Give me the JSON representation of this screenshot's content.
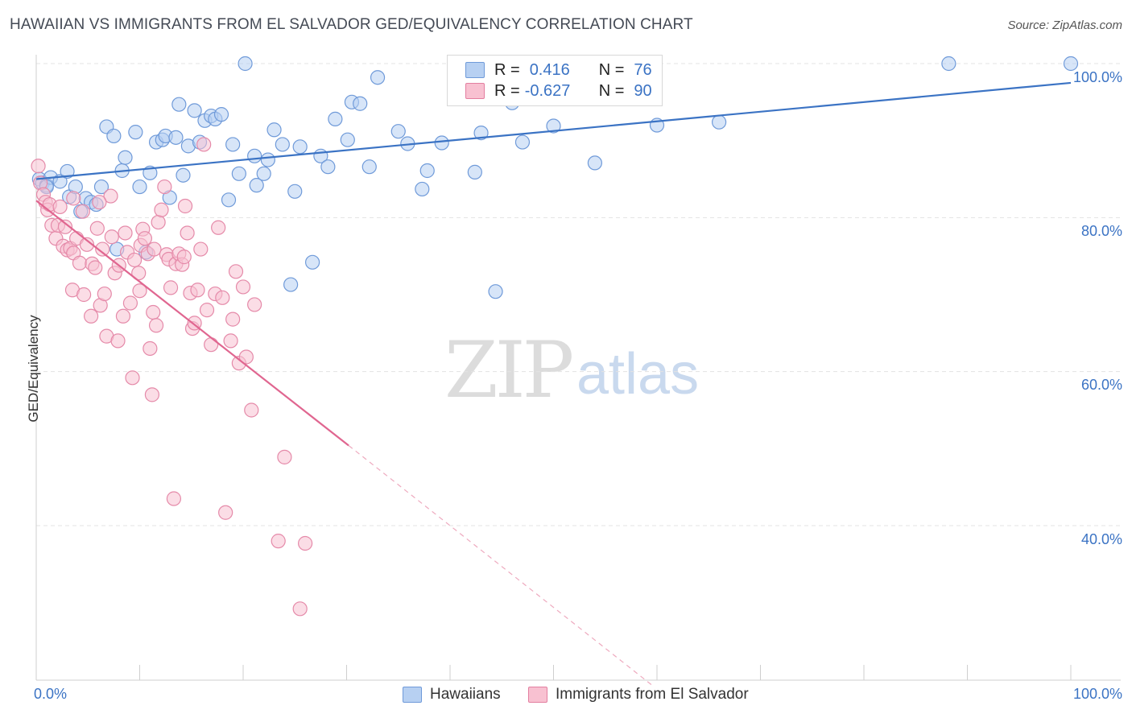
{
  "header": {
    "title": "HAWAIIAN VS IMMIGRANTS FROM EL SALVADOR GED/EQUIVALENCY CORRELATION CHART",
    "source": "Source: ZipAtlas.com"
  },
  "watermark": {
    "zip": "ZIP",
    "atlas": "atlas"
  },
  "legend": {
    "blue": {
      "r_label": "R = ",
      "r_value": "0.416",
      "n_label": "N = ",
      "n_value": "76"
    },
    "pink": {
      "r_label": "R = ",
      "r_value": "-0.627",
      "n_label": "N = ",
      "n_value": "90"
    }
  },
  "bottom_legend": {
    "series1": "Hawaiians",
    "series2": "Immigrants from El Salvador"
  },
  "colors": {
    "blue": "#3b73c4",
    "blue_fill": "#b7d0f2",
    "pink": "#e06690",
    "pink_fill": "#f8c1d1"
  },
  "chart_data": {
    "type": "scatter",
    "title": "HAWAIIAN VS IMMIGRANTS FROM EL SALVADOR GED/EQUIVALENCY CORRELATION CHART",
    "xlabel": "",
    "ylabel": "GED/Equivalency",
    "xlim": [
      0,
      100
    ],
    "ylim": [
      20,
      100
    ],
    "x_tick_labels": [
      "0.0%",
      "100.0%"
    ],
    "y_tick_labels": [
      "100.0%",
      "80.0%",
      "60.0%",
      "40.0%"
    ],
    "y_ticks": [
      100,
      80,
      60,
      40
    ],
    "grid": true,
    "legend_position": "top-center",
    "series": [
      {
        "name": "Hawaiians",
        "color": "#3b73c4",
        "trend": {
          "x": [
            0,
            100
          ],
          "y": [
            85.0,
            97.5
          ],
          "dashed_from": null
        },
        "points": [
          [
            0.3,
            85.0
          ],
          [
            0.6,
            84.5
          ],
          [
            1.0,
            84.2
          ],
          [
            1.4,
            85.2
          ],
          [
            2.3,
            84.7
          ],
          [
            3.0,
            86.0
          ],
          [
            3.2,
            82.7
          ],
          [
            3.8,
            84.0
          ],
          [
            4.3,
            80.8
          ],
          [
            4.8,
            82.5
          ],
          [
            5.3,
            82.0
          ],
          [
            5.8,
            81.7
          ],
          [
            6.3,
            84.0
          ],
          [
            6.8,
            91.8
          ],
          [
            7.5,
            90.6
          ],
          [
            7.8,
            75.9
          ],
          [
            8.3,
            86.1
          ],
          [
            8.6,
            87.8
          ],
          [
            9.6,
            91.1
          ],
          [
            10.0,
            84.0
          ],
          [
            10.6,
            75.5
          ],
          [
            11.0,
            85.8
          ],
          [
            11.6,
            89.8
          ],
          [
            12.2,
            90.1
          ],
          [
            12.5,
            90.6
          ],
          [
            12.9,
            82.6
          ],
          [
            13.5,
            90.4
          ],
          [
            13.8,
            94.7
          ],
          [
            14.2,
            85.5
          ],
          [
            14.7,
            89.3
          ],
          [
            15.3,
            93.9
          ],
          [
            15.8,
            89.8
          ],
          [
            16.3,
            92.6
          ],
          [
            16.9,
            93.2
          ],
          [
            17.3,
            92.8
          ],
          [
            17.9,
            93.4
          ],
          [
            18.6,
            82.3
          ],
          [
            19.0,
            89.5
          ],
          [
            19.6,
            85.7
          ],
          [
            20.2,
            100.0
          ],
          [
            21.1,
            88.0
          ],
          [
            21.3,
            84.2
          ],
          [
            22.0,
            85.7
          ],
          [
            22.4,
            87.5
          ],
          [
            23.0,
            91.4
          ],
          [
            23.8,
            89.5
          ],
          [
            24.6,
            71.3
          ],
          [
            25.0,
            83.4
          ],
          [
            25.5,
            89.2
          ],
          [
            26.7,
            74.2
          ],
          [
            27.5,
            88.0
          ],
          [
            28.2,
            86.6
          ],
          [
            28.9,
            92.8
          ],
          [
            30.1,
            90.1
          ],
          [
            30.5,
            95.0
          ],
          [
            31.3,
            94.8
          ],
          [
            32.2,
            86.6
          ],
          [
            33.0,
            98.2
          ],
          [
            35.0,
            91.2
          ],
          [
            35.9,
            89.6
          ],
          [
            37.3,
            83.7
          ],
          [
            37.8,
            86.1
          ],
          [
            39.2,
            89.7
          ],
          [
            41.2,
            97.2
          ],
          [
            42.4,
            85.9
          ],
          [
            43.0,
            91.0
          ],
          [
            44.4,
            70.4
          ],
          [
            46.0,
            94.9
          ],
          [
            47.0,
            89.8
          ],
          [
            50.0,
            91.9
          ],
          [
            54.0,
            87.1
          ],
          [
            60.0,
            92.0
          ],
          [
            66.0,
            92.4
          ],
          [
            88.2,
            100.0
          ],
          [
            100.0,
            100.0
          ],
          [
            1.0,
            84.0
          ]
        ]
      },
      {
        "name": "Immigrants from El Salvador",
        "color": "#e06690",
        "trend": {
          "x": [
            0,
            30.2
          ],
          "y": [
            82.2,
            50.4
          ],
          "dashed_to": [
            59.5,
            19.3
          ]
        },
        "points": [
          [
            0.2,
            86.7
          ],
          [
            0.4,
            84.5
          ],
          [
            0.7,
            83.0
          ],
          [
            0.9,
            82.0
          ],
          [
            1.1,
            81.0
          ],
          [
            1.3,
            81.7
          ],
          [
            1.5,
            79.0
          ],
          [
            1.9,
            77.3
          ],
          [
            2.1,
            79.0
          ],
          [
            2.3,
            81.4
          ],
          [
            2.6,
            76.3
          ],
          [
            2.8,
            78.8
          ],
          [
            3.0,
            75.8
          ],
          [
            3.3,
            76.0
          ],
          [
            3.5,
            70.6
          ],
          [
            3.6,
            75.4
          ],
          [
            3.9,
            77.3
          ],
          [
            4.2,
            74.1
          ],
          [
            4.5,
            80.8
          ],
          [
            4.6,
            70.0
          ],
          [
            4.9,
            76.5
          ],
          [
            5.3,
            67.2
          ],
          [
            5.4,
            74.0
          ],
          [
            5.7,
            73.5
          ],
          [
            5.9,
            78.6
          ],
          [
            6.2,
            68.6
          ],
          [
            6.4,
            75.9
          ],
          [
            6.6,
            70.1
          ],
          [
            6.8,
            64.6
          ],
          [
            7.2,
            82.8
          ],
          [
            7.3,
            77.5
          ],
          [
            7.6,
            72.8
          ],
          [
            7.9,
            64.0
          ],
          [
            8.0,
            73.8
          ],
          [
            8.4,
            67.2
          ],
          [
            8.6,
            78.0
          ],
          [
            8.8,
            75.5
          ],
          [
            9.1,
            68.9
          ],
          [
            9.3,
            59.2
          ],
          [
            9.5,
            74.5
          ],
          [
            9.9,
            72.8
          ],
          [
            10.1,
            76.4
          ],
          [
            10.3,
            78.5
          ],
          [
            10.5,
            77.3
          ],
          [
            10.8,
            75.3
          ],
          [
            11.0,
            63.0
          ],
          [
            11.2,
            57.0
          ],
          [
            11.3,
            67.7
          ],
          [
            11.4,
            75.9
          ],
          [
            11.6,
            66.0
          ],
          [
            11.8,
            79.4
          ],
          [
            12.1,
            81.0
          ],
          [
            12.4,
            84.0
          ],
          [
            12.6,
            75.2
          ],
          [
            12.8,
            74.6
          ],
          [
            13.0,
            70.9
          ],
          [
            13.3,
            43.5
          ],
          [
            13.5,
            74.0
          ],
          [
            13.8,
            75.3
          ],
          [
            14.1,
            73.9
          ],
          [
            14.4,
            81.5
          ],
          [
            14.6,
            78.0
          ],
          [
            14.9,
            70.2
          ],
          [
            15.1,
            65.6
          ],
          [
            15.3,
            66.3
          ],
          [
            15.6,
            70.6
          ],
          [
            15.9,
            75.9
          ],
          [
            16.2,
            89.5
          ],
          [
            16.5,
            68.0
          ],
          [
            16.9,
            63.5
          ],
          [
            17.3,
            70.1
          ],
          [
            17.6,
            78.7
          ],
          [
            18.0,
            69.6
          ],
          [
            18.3,
            41.7
          ],
          [
            18.8,
            64.0
          ],
          [
            19.0,
            66.8
          ],
          [
            19.3,
            73.0
          ],
          [
            19.6,
            61.1
          ],
          [
            20.0,
            71.0
          ],
          [
            20.3,
            61.9
          ],
          [
            20.8,
            55.0
          ],
          [
            21.1,
            68.7
          ],
          [
            23.4,
            38.0
          ],
          [
            24.0,
            48.9
          ],
          [
            25.5,
            29.2
          ],
          [
            26.0,
            37.7
          ],
          [
            6.1,
            82.0
          ],
          [
            14.3,
            74.9
          ],
          [
            10.0,
            70.5
          ],
          [
            3.6,
            82.5
          ]
        ]
      }
    ]
  }
}
